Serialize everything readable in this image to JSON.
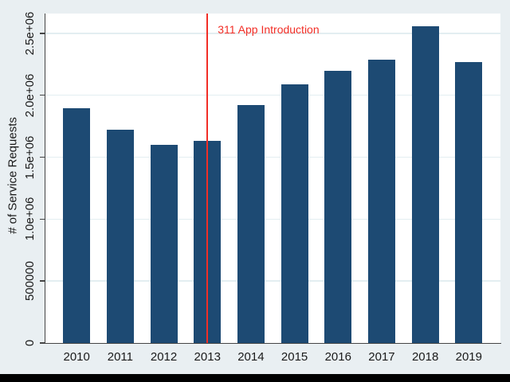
{
  "chart_data": {
    "type": "bar",
    "title": "",
    "xlabel": "",
    "ylabel": "# of Service Requests",
    "categories": [
      "2010",
      "2011",
      "2012",
      "2013",
      "2014",
      "2015",
      "2016",
      "2017",
      "2018",
      "2019"
    ],
    "values": [
      1895000,
      1720000,
      1600000,
      1630000,
      1920000,
      2085000,
      2195000,
      2290000,
      2560000,
      2265000
    ],
    "ylim": [
      0,
      2660000
    ],
    "yticks": [
      {
        "value": 0,
        "label": "0"
      },
      {
        "value": 500000,
        "label": "500000"
      },
      {
        "value": 1000000,
        "label": "1.0e+06"
      },
      {
        "value": 1500000,
        "label": "1.5e+06"
      },
      {
        "value": 2000000,
        "label": "2.0e+06"
      },
      {
        "value": 2500000,
        "label": "2.5e+06"
      }
    ],
    "ytick_label_angle": 90,
    "grid": true,
    "legend": "none",
    "vline": {
      "x_category": "2013",
      "color": "#f22e26"
    },
    "annotation": {
      "text": "311 App Introduction",
      "anchor_category": "2013",
      "color": "#f22e26"
    },
    "colors": {
      "bar": "#1d4a73",
      "figure_background": "#e9eff2",
      "plot_background": "#ffffff",
      "gridline": "#e3eef1",
      "axis": "#454545",
      "text": "#1a1a1a",
      "letterbox": "#000000"
    }
  }
}
